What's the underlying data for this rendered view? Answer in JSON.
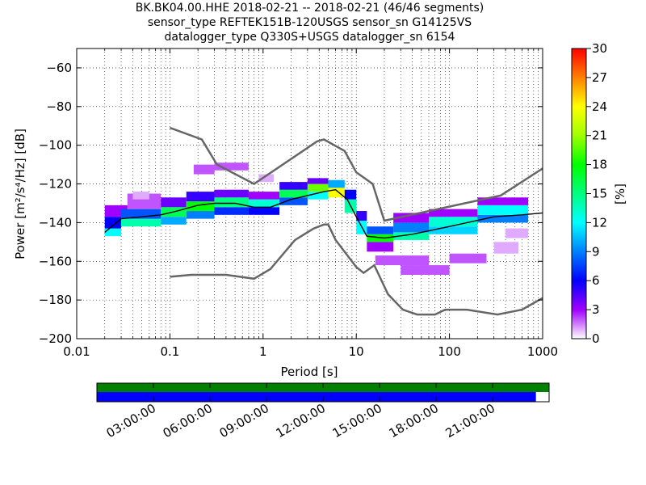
{
  "title": {
    "line1": "BK.BK04.00.HHE   2018-02-21 -- 2018-02-21  (46/46 segments)",
    "line2": "sensor_type REFTEK151B-120USGS sensor_sn G14125VS",
    "line3": "datalogger_type Q330S+USGS datalogger_sn 6154"
  },
  "colors": {
    "noise_model": "#666666",
    "mode_line": "#000000",
    "coverage_green": "#008000",
    "coverage_blue": "#0000ff"
  },
  "chart_data": {
    "type": "heatmap",
    "subtype": "probabilistic power spectral density",
    "xlabel": "Period [s]",
    "ylabel": "Power [m²/s⁴/Hz] [dB]",
    "xscale": "log",
    "xlim": [
      0.01,
      1000
    ],
    "ylim": [
      -200,
      -50
    ],
    "x_ticks": [
      "0.01",
      "0.1",
      "1",
      "10",
      "100",
      "1000"
    ],
    "x_tick_values": [
      0.01,
      0.1,
      1,
      10,
      100,
      1000
    ],
    "y_ticks": [
      "−60",
      "−80",
      "−100",
      "−120",
      "−140",
      "−160",
      "−180",
      "−200"
    ],
    "y_tick_values": [
      -60,
      -80,
      -100,
      -120,
      -140,
      -160,
      -180,
      -200
    ],
    "grid": true,
    "colorbar": {
      "label": "[%]",
      "ticks": [
        "0",
        "3",
        "6",
        "9",
        "12",
        "15",
        "18",
        "21",
        "24",
        "27",
        "30"
      ],
      "tick_values": [
        0,
        3,
        6,
        9,
        12,
        15,
        18,
        21,
        24,
        27,
        30
      ],
      "range": [
        0,
        30
      ]
    },
    "noise_models": {
      "high": [
        [
          0.1,
          -91
        ],
        [
          0.22,
          -97
        ],
        [
          0.32,
          -110
        ],
        [
          0.8,
          -120
        ],
        [
          3.8,
          -98
        ],
        [
          4.5,
          -97
        ],
        [
          7.5,
          -103
        ],
        [
          10,
          -114
        ],
        [
          15,
          -120
        ],
        [
          20,
          -139
        ],
        [
          354,
          -126
        ],
        [
          1000,
          -112
        ]
      ],
      "low": [
        [
          0.1,
          -168
        ],
        [
          0.17,
          -167
        ],
        [
          0.4,
          -167
        ],
        [
          0.8,
          -169
        ],
        [
          1.2,
          -164
        ],
        [
          2.2,
          -149
        ],
        [
          3.5,
          -143
        ],
        [
          4.5,
          -141
        ],
        [
          5,
          -141
        ],
        [
          6,
          -149
        ],
        [
          10,
          -163
        ],
        [
          12,
          -166
        ],
        [
          15.6,
          -162
        ],
        [
          21.9,
          -177
        ],
        [
          31.6,
          -185
        ],
        [
          45,
          -187.5
        ],
        [
          70,
          -187.5
        ],
        [
          90,
          -185
        ],
        [
          154,
          -185
        ],
        [
          328,
          -187.5
        ],
        [
          600,
          -185
        ],
        [
          1000,
          -179
        ]
      ]
    },
    "mode": [
      [
        0.02,
        -145
      ],
      [
        0.03,
        -138
      ],
      [
        0.05,
        -137
      ],
      [
        0.08,
        -136
      ],
      [
        0.12,
        -134
      ],
      [
        0.2,
        -131
      ],
      [
        0.3,
        -130
      ],
      [
        0.5,
        -130
      ],
      [
        0.8,
        -132
      ],
      [
        1.2,
        -132
      ],
      [
        2,
        -128
      ],
      [
        3,
        -126
      ],
      [
        4.5,
        -124
      ],
      [
        6,
        -123
      ],
      [
        8,
        -128
      ],
      [
        10,
        -137
      ],
      [
        13,
        -147
      ],
      [
        20,
        -148
      ],
      [
        40,
        -146
      ],
      [
        100,
        -142
      ],
      [
        300,
        -137
      ],
      [
        600,
        -136
      ],
      [
        1000,
        -135
      ]
    ],
    "pdf": [
      {
        "period": [
          0.02,
          0.03
        ],
        "db": [
          -147,
          -143
        ],
        "pct": 12
      },
      {
        "period": [
          0.02,
          0.03
        ],
        "db": [
          -143,
          -137
        ],
        "pct": 6
      },
      {
        "period": [
          0.02,
          0.035
        ],
        "db": [
          -137,
          -131
        ],
        "pct": 3
      },
      {
        "period": [
          0.03,
          0.08
        ],
        "db": [
          -142,
          -138
        ],
        "pct": 14
      },
      {
        "period": [
          0.03,
          0.08
        ],
        "db": [
          -138,
          -133
        ],
        "pct": 8
      },
      {
        "period": [
          0.035,
          0.08
        ],
        "db": [
          -133,
          -125
        ],
        "pct": 2
      },
      {
        "period": [
          0.04,
          0.06
        ],
        "db": [
          -128,
          -124
        ],
        "pct": 1
      },
      {
        "period": [
          0.08,
          0.15
        ],
        "db": [
          -141,
          -137
        ],
        "pct": 10
      },
      {
        "period": [
          0.08,
          0.15
        ],
        "db": [
          -137,
          -132
        ],
        "pct": 16
      },
      {
        "period": [
          0.08,
          0.15
        ],
        "db": [
          -132,
          -127
        ],
        "pct": 4
      },
      {
        "period": [
          0.15,
          0.3
        ],
        "db": [
          -138,
          -134
        ],
        "pct": 9
      },
      {
        "period": [
          0.15,
          0.3
        ],
        "db": [
          -134,
          -129
        ],
        "pct": 18
      },
      {
        "period": [
          0.15,
          0.3
        ],
        "db": [
          -129,
          -124
        ],
        "pct": 5
      },
      {
        "period": [
          0.18,
          0.3
        ],
        "db": [
          -115,
          -110
        ],
        "pct": 2
      },
      {
        "period": [
          0.3,
          0.7
        ],
        "db": [
          -136,
          -132
        ],
        "pct": 7
      },
      {
        "period": [
          0.3,
          0.7
        ],
        "db": [
          -132,
          -127
        ],
        "pct": 15
      },
      {
        "period": [
          0.3,
          0.7
        ],
        "db": [
          -127,
          -123
        ],
        "pct": 4
      },
      {
        "period": [
          0.3,
          0.7
        ],
        "db": [
          -113,
          -109
        ],
        "pct": 2
      },
      {
        "period": [
          0.7,
          1.5
        ],
        "db": [
          -136,
          -132
        ],
        "pct": 6
      },
      {
        "period": [
          0.7,
          1.5
        ],
        "db": [
          -132,
          -128
        ],
        "pct": 13
      },
      {
        "period": [
          0.7,
          1.5
        ],
        "db": [
          -128,
          -124
        ],
        "pct": 3
      },
      {
        "period": [
          0.9,
          1.3
        ],
        "db": [
          -119,
          -115
        ],
        "pct": 1
      },
      {
        "period": [
          1.5,
          3
        ],
        "db": [
          -131,
          -127
        ],
        "pct": 8
      },
      {
        "period": [
          1.5,
          3
        ],
        "db": [
          -127,
          -123
        ],
        "pct": 16
      },
      {
        "period": [
          1.5,
          3
        ],
        "db": [
          -123,
          -119
        ],
        "pct": 5
      },
      {
        "period": [
          3,
          5
        ],
        "db": [
          -128,
          -124
        ],
        "pct": 12
      },
      {
        "period": [
          3,
          5
        ],
        "db": [
          -124,
          -120
        ],
        "pct": 20
      },
      {
        "period": [
          3,
          5
        ],
        "db": [
          -120,
          -117
        ],
        "pct": 4
      },
      {
        "period": [
          5,
          7.5
        ],
        "db": [
          -127,
          -122
        ],
        "pct": 24
      },
      {
        "period": [
          5,
          7.5
        ],
        "db": [
          -122,
          -118
        ],
        "pct": 10
      },
      {
        "period": [
          7.5,
          10
        ],
        "db": [
          -135,
          -128
        ],
        "pct": 14
      },
      {
        "period": [
          7.5,
          10
        ],
        "db": [
          -128,
          -123
        ],
        "pct": 6
      },
      {
        "period": [
          10,
          13
        ],
        "db": [
          -146,
          -139
        ],
        "pct": 12
      },
      {
        "period": [
          10,
          13
        ],
        "db": [
          -139,
          -134
        ],
        "pct": 5
      },
      {
        "period": [
          13,
          25
        ],
        "db": [
          -150,
          -146
        ],
        "pct": 18
      },
      {
        "period": [
          13,
          25
        ],
        "db": [
          -146,
          -142
        ],
        "pct": 8
      },
      {
        "period": [
          13,
          25
        ],
        "db": [
          -155,
          -150
        ],
        "pct": 3
      },
      {
        "period": [
          16,
          60
        ],
        "db": [
          -162,
          -157
        ],
        "pct": 2
      },
      {
        "period": [
          25,
          60
        ],
        "db": [
          -149,
          -145
        ],
        "pct": 14
      },
      {
        "period": [
          25,
          60
        ],
        "db": [
          -145,
          -140
        ],
        "pct": 9
      },
      {
        "period": [
          25,
          60
        ],
        "db": [
          -140,
          -135
        ],
        "pct": 3
      },
      {
        "period": [
          30,
          100
        ],
        "db": [
          -167,
          -162
        ],
        "pct": 2
      },
      {
        "period": [
          60,
          200
        ],
        "db": [
          -146,
          -142
        ],
        "pct": 11
      },
      {
        "period": [
          60,
          200
        ],
        "db": [
          -142,
          -137
        ],
        "pct": 13
      },
      {
        "period": [
          60,
          200
        ],
        "db": [
          -137,
          -133
        ],
        "pct": 3
      },
      {
        "period": [
          100,
          250
        ],
        "db": [
          -161,
          -156
        ],
        "pct": 2
      },
      {
        "period": [
          200,
          700
        ],
        "db": [
          -140,
          -136
        ],
        "pct": 9
      },
      {
        "period": [
          200,
          700
        ],
        "db": [
          -136,
          -131
        ],
        "pct": 12
      },
      {
        "period": [
          200,
          700
        ],
        "db": [
          -131,
          -127
        ],
        "pct": 3
      },
      {
        "period": [
          300,
          550
        ],
        "db": [
          -156,
          -150
        ],
        "pct": 1
      },
      {
        "period": [
          400,
          700
        ],
        "db": [
          -148,
          -143
        ],
        "pct": 1
      }
    ]
  },
  "timeline": {
    "labels": [
      "03:00:00",
      "06:00:00",
      "09:00:00",
      "12:00:00",
      "15:00:00",
      "18:00:00",
      "21:00:00"
    ],
    "tick_hours": [
      3,
      6,
      9,
      12,
      15,
      18,
      21
    ],
    "range_hours": [
      0,
      24
    ],
    "coverage_green": [
      0,
      24
    ],
    "coverage_blue": [
      0,
      23.3
    ]
  }
}
